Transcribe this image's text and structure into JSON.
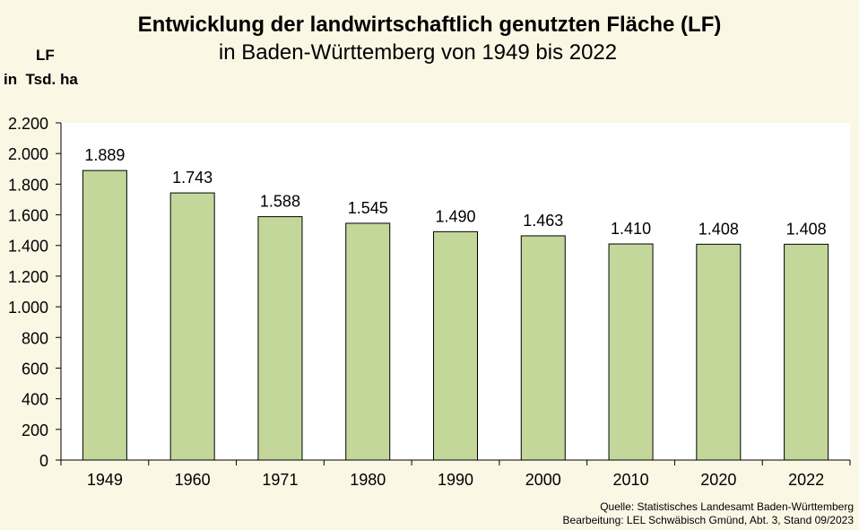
{
  "chart_data": {
    "type": "bar",
    "title": "Entwicklung der landwirtschaftlich genutzten Fläche (LF)",
    "subtitle": "in Baden-Württemberg von 1949 bis 2022",
    "ylabel_line1": "LF",
    "ylabel_line2": "in  Tsd. ha",
    "xlabel": "",
    "categories": [
      "1949",
      "1960",
      "1971",
      "1980",
      "1990",
      "2000",
      "2010",
      "2020",
      "2022"
    ],
    "values": [
      1889,
      1743,
      1588,
      1545,
      1490,
      1463,
      1410,
      1408,
      1408
    ],
    "data_labels": [
      "1.889",
      "1.743",
      "1.588",
      "1.545",
      "1.490",
      "1.463",
      "1.410",
      "1.408",
      "1.408"
    ],
    "ylim": [
      0,
      2200
    ],
    "yticks": [
      0,
      200,
      400,
      600,
      800,
      1000,
      1200,
      1400,
      1600,
      1800,
      2000,
      2200
    ],
    "ytick_labels": [
      "0",
      "200",
      "400",
      "600",
      "800",
      "1.000",
      "1.200",
      "1.400",
      "1.600",
      "1.800",
      "2.000",
      "2.200"
    ],
    "grid": false,
    "bar_color": "#C4D79B",
    "plot_background": "#FFFFFF",
    "page_background": "#FBF7E5"
  },
  "source": {
    "line1": "Quelle:  Statistisches Landesamt  Baden-Württemberg",
    "line2": "Bearbeitung:  LEL  Schwäbisch  Gmünd,  Abt. 3,  Stand 09/2023"
  }
}
